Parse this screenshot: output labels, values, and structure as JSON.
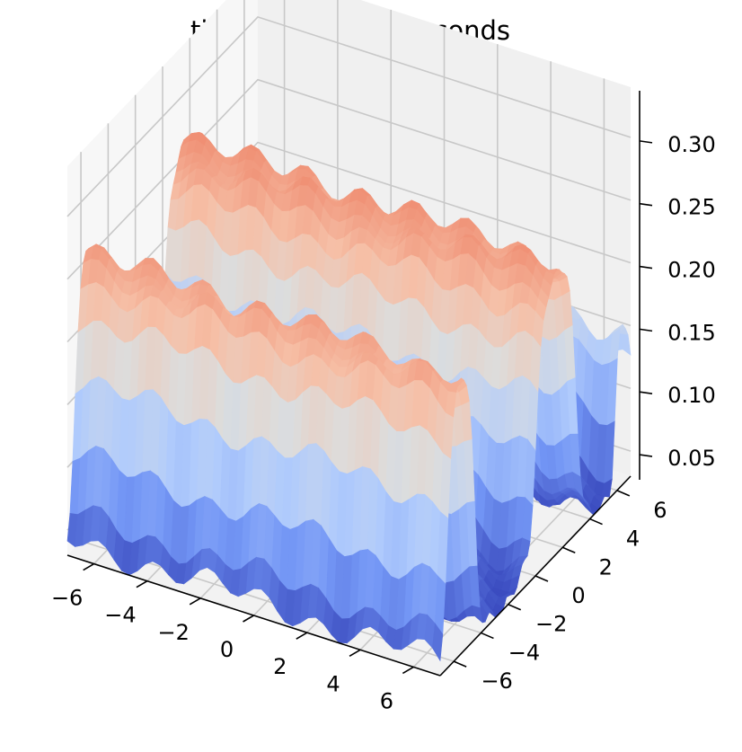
{
  "chart_data": {
    "type": "surface-3d",
    "title": "time = 0.60000 seconds",
    "colormap": "coolwarm",
    "colormap_colors": [
      "#3b4cc0",
      "#7396f5",
      "#b0cbfc",
      "#dcdddd",
      "#f6bfa6",
      "#ee8468",
      "#b40426"
    ],
    "x_ticks": [
      -6,
      -4,
      -2,
      0,
      2,
      4,
      6
    ],
    "y_ticks": [
      -6,
      -4,
      -2,
      0,
      2,
      4,
      6
    ],
    "z_ticks": [
      "0.05",
      "0.10",
      "0.15",
      "0.20",
      "0.25",
      "0.30"
    ],
    "x_tick_labels": [
      "−6",
      "−4",
      "−2",
      "0",
      "2",
      "4",
      "6"
    ],
    "y_tick_labels": [
      "−6",
      "−4",
      "−2",
      "0",
      "2",
      "4",
      "6"
    ],
    "xlim": [
      -7,
      7
    ],
    "ylim": [
      -7,
      7
    ],
    "zlim": [
      0.03,
      0.34
    ],
    "grid": true,
    "surface": {
      "description_of_shape": "two parallel ridges along the x axis at y = -5.5 and y = 1.5, a small ridge at y = 6.5, troughs between",
      "ridges": [
        {
          "y_center": -5.5,
          "width": 0.9,
          "height": 0.21
        },
        {
          "y_center": 1.5,
          "width": 1.3,
          "height": 0.22
        },
        {
          "y_center": 6.5,
          "width": 0.6,
          "height": 0.11
        }
      ],
      "baseline": 0.04,
      "x_slope": -0.03,
      "z_min": 0.03,
      "z_max": 0.33
    }
  }
}
